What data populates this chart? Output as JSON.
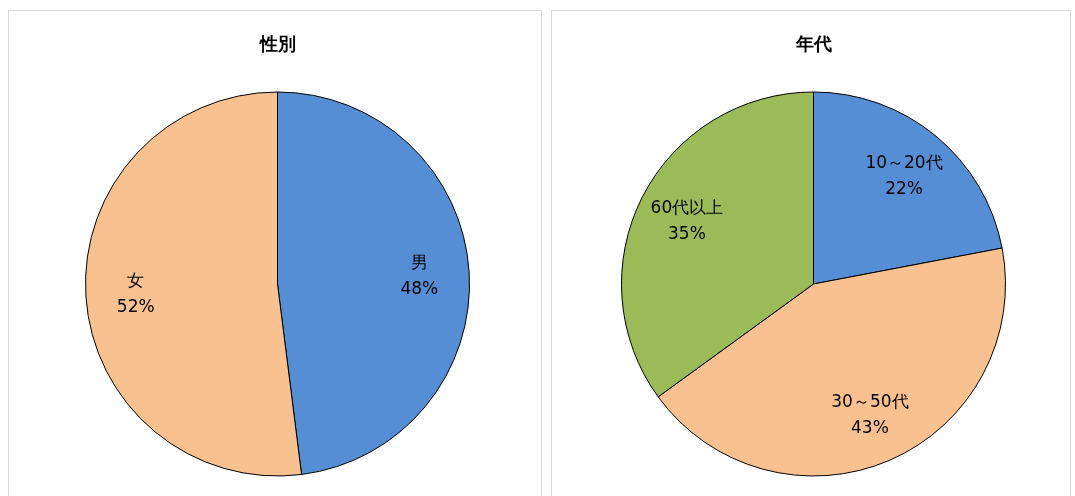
{
  "chart_data": [
    {
      "type": "pie",
      "title": "性別",
      "categories": [
        "男",
        "女"
      ],
      "values": [
        48,
        52
      ],
      "colors": [
        "#558ed5",
        "#f9c090"
      ],
      "value_labels": [
        "48%",
        "52%"
      ]
    },
    {
      "type": "pie",
      "title": "年代",
      "categories": [
        "10～20代",
        "30～50代",
        "60代以上"
      ],
      "values": [
        22,
        43,
        35
      ],
      "colors": [
        "#558ed5",
        "#f9c090",
        "#9bbb59"
      ],
      "value_labels": [
        "22%",
        "43%",
        "35%"
      ]
    }
  ]
}
